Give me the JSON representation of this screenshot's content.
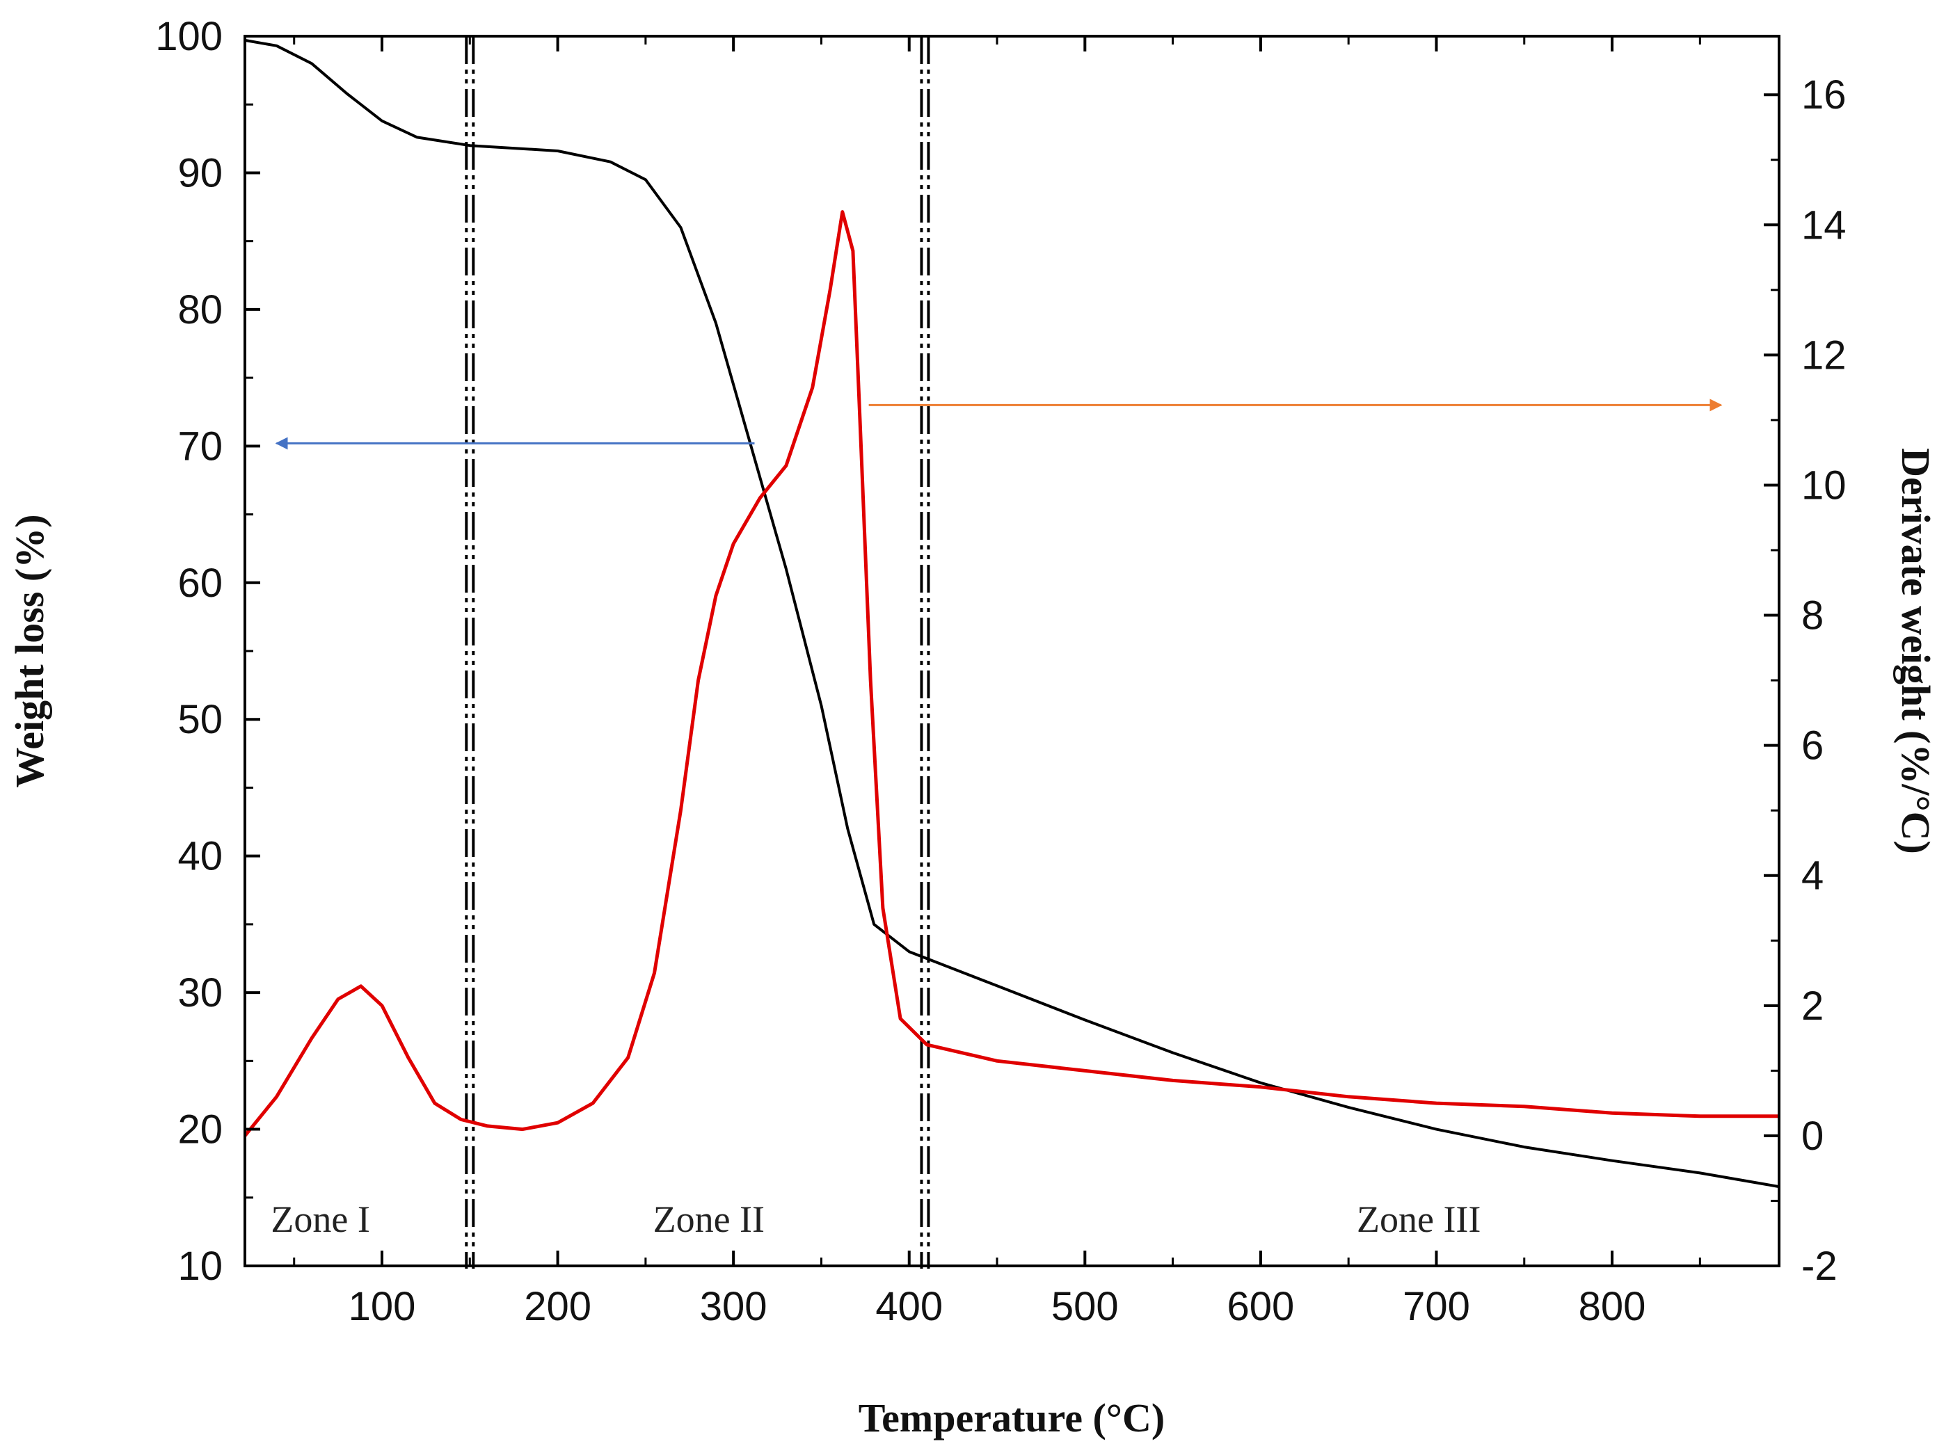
{
  "chart_data": {
    "type": "line",
    "title": "",
    "xlabel": "Temperature (°C)",
    "ylabel_left": "Weight loss (%)",
    "ylabel_right": "Derivate weight (%/°C)",
    "xlim": [
      22,
      895
    ],
    "ylim_left": [
      10,
      100
    ],
    "ylim_right": [
      -2,
      16.9
    ],
    "x_ticks": [
      100,
      200,
      300,
      400,
      500,
      600,
      700,
      800
    ],
    "x_tick_labels": [
      "100",
      "200",
      "300",
      "400",
      "500",
      "600",
      "700",
      "800"
    ],
    "y_left_ticks": [
      10,
      20,
      30,
      40,
      50,
      60,
      70,
      80,
      90,
      100
    ],
    "y_left_tick_labels": [
      "10",
      "20",
      "30",
      "40",
      "50",
      "60",
      "70",
      "80",
      "90",
      "100"
    ],
    "y_right_ticks": [
      -2,
      0,
      2,
      4,
      6,
      8,
      10,
      12,
      14,
      16
    ],
    "y_right_tick_labels": [
      "-2",
      "0",
      "2",
      "4",
      "6",
      "8",
      "10",
      "12",
      "14",
      "16"
    ],
    "grid": false,
    "series": [
      {
        "name": "Weight loss",
        "axis": "left",
        "color": "#000000",
        "x": [
          22,
          40,
          60,
          80,
          100,
          120,
          150,
          200,
          230,
          250,
          270,
          290,
          310,
          330,
          350,
          365,
          380,
          400,
          450,
          500,
          550,
          600,
          650,
          700,
          750,
          800,
          850,
          895
        ],
        "y": [
          99.7,
          99.3,
          98.0,
          95.8,
          93.8,
          92.6,
          92.0,
          91.6,
          90.8,
          89.5,
          86.0,
          79.0,
          70.0,
          61.0,
          51.0,
          42.0,
          35.0,
          33.0,
          30.5,
          28.0,
          25.6,
          23.4,
          21.6,
          20.0,
          18.7,
          17.7,
          16.8,
          15.8
        ]
      },
      {
        "name": "Derivate weight",
        "axis": "right",
        "color": "#e00000",
        "x": [
          22,
          40,
          60,
          75,
          88,
          100,
          115,
          130,
          145,
          160,
          180,
          200,
          220,
          240,
          255,
          270,
          280,
          290,
          300,
          315,
          330,
          345,
          355,
          362,
          368,
          372,
          378,
          385,
          395,
          410,
          450,
          500,
          550,
          600,
          650,
          700,
          750,
          800,
          850,
          895
        ],
        "y": [
          0.0,
          0.6,
          1.5,
          2.1,
          2.3,
          2.0,
          1.2,
          0.5,
          0.25,
          0.15,
          0.1,
          0.2,
          0.5,
          1.2,
          2.5,
          5.0,
          7.0,
          8.3,
          9.1,
          9.8,
          10.3,
          11.5,
          13.0,
          14.2,
          13.6,
          11.0,
          7.0,
          3.5,
          1.8,
          1.4,
          1.15,
          1.0,
          0.85,
          0.75,
          0.6,
          0.5,
          0.45,
          0.35,
          0.3,
          0.3
        ]
      }
    ],
    "vertical_markers": [
      {
        "name": "zone-divider-1",
        "x": 150
      },
      {
        "name": "zone-divider-2",
        "x": 409
      }
    ],
    "zone_labels": [
      {
        "text": "Zone I",
        "x": 65,
        "y": 12.5
      },
      {
        "text": "Zone II",
        "x": 286,
        "y": 12.5
      },
      {
        "text": "Zone III",
        "x": 690,
        "y": 12.5
      }
    ],
    "arrows": [
      {
        "name": "arrow-to-left-axis",
        "color": "#4472c4",
        "x_from": 312,
        "x_to": 40,
        "y_left": 70.2
      },
      {
        "name": "arrow-to-right-axis",
        "color": "#ed7d31",
        "x_from": 377,
        "x_to": 862,
        "y_left": 73.0
      }
    ]
  }
}
